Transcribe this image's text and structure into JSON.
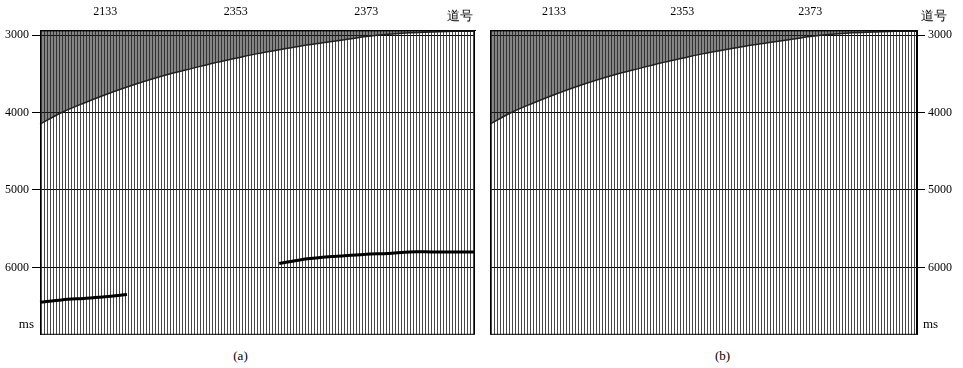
{
  "chart_data": [
    {
      "type": "line",
      "title": "(a)",
      "x_label": "道号",
      "y_label": "ms",
      "categories": [
        null,
        null,
        null,
        "2133",
        null,
        null,
        null,
        null,
        null,
        "2353",
        null,
        null,
        null,
        null,
        null,
        "2373",
        null,
        null,
        null,
        null,
        null
      ],
      "series": [
        {
          "color": "#202020",
          "values": [
            4150,
            4000,
            3880,
            3770,
            3670,
            3580,
            3500,
            3430,
            3360,
            3300,
            3240,
            3190,
            3140,
            3100,
            3060,
            3020,
            2990,
            2970,
            2960,
            2950,
            2950
          ]
        },
        {
          "color": "#000000",
          "values": [
            6450,
            6420,
            6400,
            6380,
            6350,
            null,
            null,
            null,
            null,
            null,
            null,
            5950,
            5900,
            5870,
            5850,
            5830,
            5820,
            5800,
            5800,
            5800,
            5800
          ]
        }
      ],
      "ylim": [
        2940,
        6870
      ],
      "yticks": [
        3000,
        4000,
        5000,
        6000
      ],
      "grid": true
    },
    {
      "type": "line",
      "title": "(b)",
      "x_label": "道号",
      "y_label": "ms",
      "categories": [
        null,
        null,
        null,
        "2133",
        null,
        null,
        null,
        null,
        null,
        "2353",
        null,
        null,
        null,
        null,
        null,
        "2373",
        null,
        null,
        null,
        null,
        null
      ],
      "series": [
        {
          "color": "#202020",
          "values": [
            4150,
            4000,
            3880,
            3770,
            3670,
            3580,
            3500,
            3430,
            3360,
            3300,
            3240,
            3190,
            3140,
            3100,
            3060,
            3020,
            2990,
            2970,
            2960,
            2950,
            2950
          ]
        }
      ],
      "ylim": [
        2940,
        6870
      ],
      "yticks": [
        3000,
        4000,
        5000,
        6000
      ],
      "grid": true
    }
  ]
}
